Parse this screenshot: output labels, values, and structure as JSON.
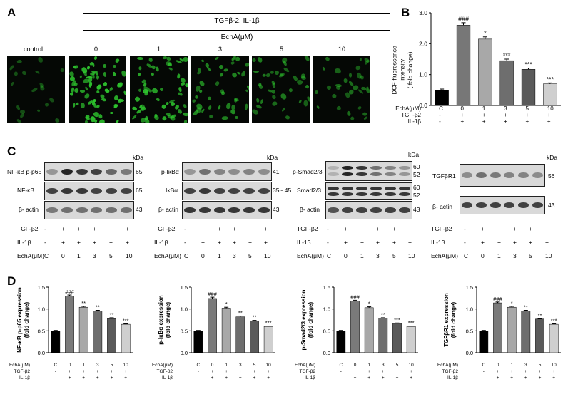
{
  "panelA": {
    "letter": "A",
    "treatment_header": "TGFβ-2, IL-1β",
    "echa_header": "EchA(μM)",
    "control_label": "control",
    "dose_labels": [
      "0",
      "1",
      "3",
      "5",
      "10"
    ],
    "brightness": [
      0.15,
      1.0,
      0.85,
      0.55,
      0.45,
      0.35
    ]
  },
  "panelB": {
    "letter": "B",
    "ylabel_line1": "DCF-fluorescence intensity",
    "ylabel_line2": "( fold change)",
    "row_labels": [
      "EchA(μM)",
      "TGF-β2",
      "IL-1β"
    ],
    "row_values": [
      [
        "C",
        "0",
        "1",
        "3",
        "5",
        "10"
      ],
      [
        "-",
        "+",
        "+",
        "+",
        "+",
        "+"
      ],
      [
        "-",
        "+",
        "+",
        "+",
        "+",
        "+"
      ]
    ]
  },
  "panelC": {
    "letter": "C",
    "kda": "kDa",
    "blots": [
      {
        "rows": [
          "NF-κB p-p65",
          "NF-κB",
          "β- actin"
        ],
        "kda": [
          "65",
          "65",
          "43"
        ]
      },
      {
        "rows": [
          "p-IκBα",
          "IκBα",
          "β- actin"
        ],
        "kda": [
          "41",
          "35~ 45",
          "43"
        ]
      },
      {
        "rows": [
          "p-Smad2/3",
          "Smad2/3",
          "β- actin"
        ],
        "kda_multi": [
          [
            "60",
            "52"
          ],
          [
            "60",
            "52"
          ],
          [
            "43"
          ]
        ]
      },
      {
        "rows": [
          "TGFβR1",
          "β- actin"
        ],
        "kda": [
          "56",
          "43"
        ]
      }
    ],
    "cond_labels": [
      "TGF-β2",
      "IL-1β",
      "EchA(μM)"
    ],
    "cond_values": [
      [
        "-",
        "+",
        "+",
        "+",
        "+",
        "+"
      ],
      [
        "-",
        "+",
        "+",
        "+",
        "+",
        "+"
      ],
      [
        "C",
        "0",
        "1",
        "3",
        "5",
        "10"
      ]
    ]
  },
  "panelD": {
    "letter": "D",
    "row_labels": [
      "EchA(μM)",
      "TGF-β2",
      "IL-1β"
    ]
  },
  "chart_data": [
    {
      "type": "bar",
      "panel": "B",
      "categories": [
        "C",
        "0",
        "1",
        "3",
        "5",
        "10"
      ],
      "values": [
        0.5,
        2.6,
        2.15,
        1.45,
        1.17,
        0.7
      ],
      "errors": [
        0.03,
        0.08,
        0.07,
        0.05,
        0.04,
        0.03
      ],
      "sig": [
        "",
        "###",
        "*",
        "***",
        "***",
        "***"
      ],
      "ylabel": "DCF-fluorescence intensity ( fold change)",
      "ylim": [
        0,
        3.0
      ],
      "yticks": [
        "0.0",
        "1.0",
        "2.0",
        "3.0"
      ],
      "colors": [
        "#000000",
        "#777777",
        "#a8a8a8",
        "#6e6e6e",
        "#5a5a5a",
        "#cfcfcf"
      ]
    },
    {
      "type": "bar",
      "panel": "D1",
      "categories": [
        "C",
        "0",
        "1",
        "3",
        "5",
        "10"
      ],
      "values": [
        0.5,
        1.3,
        1.04,
        0.95,
        0.78,
        0.65
      ],
      "errors": [
        0.01,
        0.02,
        0.02,
        0.02,
        0.02,
        0.01
      ],
      "sig": [
        "",
        "###",
        "**",
        "**",
        "**",
        "***"
      ],
      "ylabel": "NF-κB p-p65 expression (fold change)",
      "ylim": [
        0,
        1.5
      ],
      "yticks": [
        "0.0",
        "0.5",
        "1.0",
        "1.5"
      ],
      "colors": [
        "#000000",
        "#7a7a7a",
        "#a8a8a8",
        "#6e6e6e",
        "#5a5a5a",
        "#cfcfcf"
      ]
    },
    {
      "type": "bar",
      "panel": "D2",
      "categories": [
        "C",
        "0",
        "1",
        "3",
        "5",
        "10"
      ],
      "values": [
        0.5,
        1.24,
        1.02,
        0.82,
        0.73,
        0.6
      ],
      "errors": [
        0.01,
        0.03,
        0.02,
        0.02,
        0.01,
        0.01
      ],
      "sig": [
        "",
        "###",
        "*",
        "**",
        "**",
        "***"
      ],
      "ylabel": "p-IκBα expression (fold change)",
      "ylim": [
        0,
        1.5
      ],
      "yticks": [
        "0.0",
        "0.5",
        "1.0",
        "1.5"
      ],
      "colors": [
        "#000000",
        "#7a7a7a",
        "#a8a8a8",
        "#6e6e6e",
        "#5a5a5a",
        "#cfcfcf"
      ]
    },
    {
      "type": "bar",
      "panel": "D3",
      "categories": [
        "C",
        "0",
        "1",
        "3",
        "5",
        "10"
      ],
      "values": [
        0.5,
        1.18,
        1.03,
        0.79,
        0.67,
        0.6
      ],
      "errors": [
        0.01,
        0.02,
        0.02,
        0.01,
        0.01,
        0.01
      ],
      "sig": [
        "",
        "###",
        "*",
        "**",
        "***",
        "***"
      ],
      "ylabel": "p-Smad2/3 expression (fold change)",
      "ylim": [
        0,
        1.5
      ],
      "yticks": [
        "0.0",
        "0.5",
        "1.0",
        "1.5"
      ],
      "colors": [
        "#000000",
        "#7a7a7a",
        "#a8a8a8",
        "#6e6e6e",
        "#5a5a5a",
        "#cfcfcf"
      ]
    },
    {
      "type": "bar",
      "panel": "D4",
      "categories": [
        "C",
        "0",
        "1",
        "3",
        "5",
        "10"
      ],
      "values": [
        0.5,
        1.14,
        1.04,
        0.95,
        0.77,
        0.65
      ],
      "errors": [
        0.01,
        0.02,
        0.02,
        0.02,
        0.01,
        0.01
      ],
      "sig": [
        "",
        "###",
        "*",
        "**",
        "**",
        "***"
      ],
      "ylabel": "TGFβR1 expression (fold change)",
      "ylim": [
        0,
        1.5
      ],
      "yticks": [
        "0.0",
        "0.5",
        "1.0",
        "1.5"
      ],
      "colors": [
        "#000000",
        "#7a7a7a",
        "#a8a8a8",
        "#6e6e6e",
        "#5a5a5a",
        "#cfcfcf"
      ]
    }
  ]
}
